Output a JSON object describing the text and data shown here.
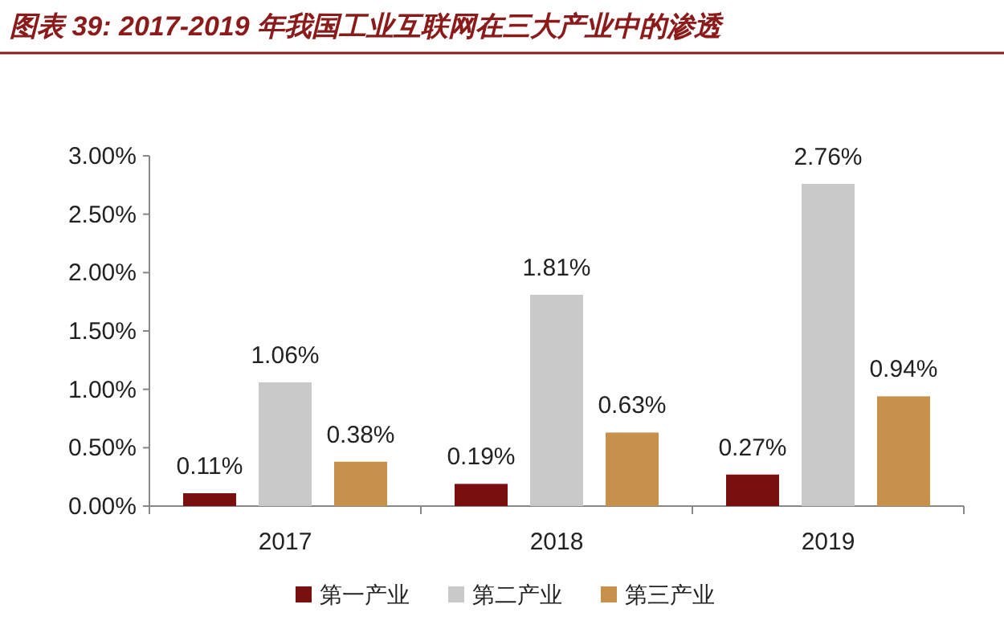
{
  "chart_data": {
    "type": "bar",
    "title": "图表 39: 2017-2019 年我国工业互联网在三大产业中的渗透",
    "categories": [
      "2017",
      "2018",
      "2019"
    ],
    "series": [
      {
        "name": "第一产业",
        "color": "#7a0f10",
        "values": [
          0.11,
          0.19,
          0.27
        ],
        "value_labels": [
          "0.11%",
          "0.19%",
          "0.27%"
        ]
      },
      {
        "name": "第二产业",
        "color": "#c9c9c9",
        "values": [
          1.06,
          1.81,
          2.76
        ],
        "value_labels": [
          "1.06%",
          "1.81%",
          "2.76%"
        ]
      },
      {
        "name": "第三产业",
        "color": "#c8914b",
        "values": [
          0.38,
          0.63,
          0.94
        ],
        "value_labels": [
          "0.38%",
          "0.63%",
          "0.94%"
        ]
      }
    ],
    "ylim": [
      0,
      3
    ],
    "yticks": [
      {
        "value": 0,
        "label": "0.00%"
      },
      {
        "value": 0.5,
        "label": "0.50%"
      },
      {
        "value": 1,
        "label": "1.00%"
      },
      {
        "value": 1.5,
        "label": "1.50%"
      },
      {
        "value": 2,
        "label": "2.00%"
      },
      {
        "value": 2.5,
        "label": "2.50%"
      },
      {
        "value": 3,
        "label": "3.00%"
      }
    ],
    "grid": false,
    "legend": "bottom"
  }
}
